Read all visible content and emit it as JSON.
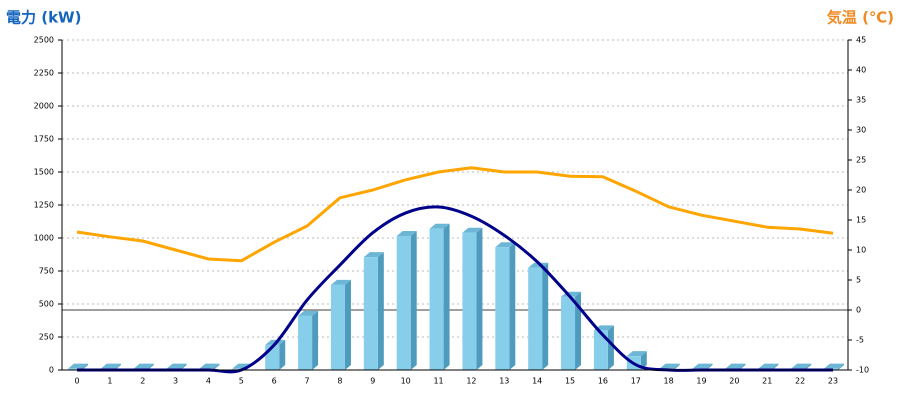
{
  "chart_data": {
    "type": "bar_line",
    "y_label": "電力 (kW)",
    "y2_label": "気温 (℃)",
    "categories": [
      "0",
      "1",
      "2",
      "3",
      "4",
      "5",
      "6",
      "7",
      "8",
      "9",
      "10",
      "11",
      "12",
      "13",
      "14",
      "15",
      "16",
      "17",
      "18",
      "19",
      "20",
      "21",
      "22",
      "23"
    ],
    "series": [
      {
        "type": "bar",
        "color": "#87ceeb",
        "values": [
          10,
          10,
          10,
          10,
          10,
          10,
          190,
          410,
          645,
          855,
          1015,
          1070,
          1040,
          930,
          775,
          555,
          300,
          105,
          10,
          10,
          10,
          10,
          10,
          10
        ]
      },
      {
        "type": "line",
        "color": "#00008b",
        "values": [
          0,
          0,
          0,
          0,
          0,
          0,
          190,
          530,
          795,
          1040,
          1190,
          1235,
          1165,
          1020,
          820,
          555,
          265,
          40,
          0,
          0,
          0,
          0,
          0,
          0
        ]
      },
      {
        "type": "line",
        "color": "#ffa500",
        "axis": "y2",
        "values": [
          13,
          12.2,
          11.5,
          10,
          8.5,
          8.2,
          11.3,
          14,
          18.7,
          20,
          21.7,
          23,
          23.7,
          23,
          23,
          22.3,
          22.2,
          19.8,
          17.2,
          15.8,
          14.8,
          13.8,
          13.5,
          12.8
        ]
      }
    ],
    "ylim": [
      0,
      2500
    ],
    "yticks": [
      0,
      250,
      500,
      750,
      1000,
      1250,
      1500,
      1750,
      2000,
      2250,
      2500
    ],
    "y2lim": [
      -10,
      45
    ],
    "y2ticks": [
      -10,
      -5,
      0,
      5,
      10,
      15,
      20,
      25,
      30,
      35,
      40,
      45
    ],
    "grid": true
  }
}
